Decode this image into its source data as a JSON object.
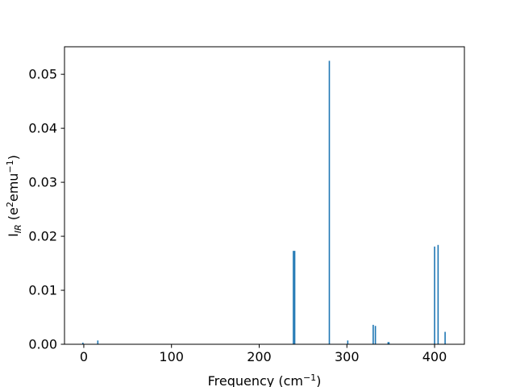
{
  "chart_data": {
    "type": "bar",
    "title": "",
    "xlabel": {
      "base": "Frequency (cm",
      "sup": "−1",
      "tail": ")"
    },
    "ylabel": {
      "base": "I",
      "sub": "IR",
      "mid": " (e",
      "sup1": "2",
      "mid2": "emu",
      "sup2": "−1",
      "tail": ")"
    },
    "xlim": [
      -22,
      434
    ],
    "ylim": [
      0,
      0.0551
    ],
    "xticks": [
      0,
      100,
      200,
      300,
      400
    ],
    "xtick_labels": [
      "0",
      "100",
      "200",
      "300",
      "400"
    ],
    "yticks": [
      0.0,
      0.01,
      0.02,
      0.03,
      0.04,
      0.05
    ],
    "ytick_labels": [
      "0.00",
      "0.01",
      "0.02",
      "0.03",
      "0.04",
      "0.05"
    ],
    "grid": false,
    "bar_color": "#1f77b4",
    "bars": [
      {
        "x": -1,
        "y": 0.0003
      },
      {
        "x": 16,
        "y": 0.0007
      },
      {
        "x": 239,
        "y": 0.0173
      },
      {
        "x": 240.5,
        "y": 0.0173
      },
      {
        "x": 280,
        "y": 0.0525
      },
      {
        "x": 301,
        "y": 0.0007
      },
      {
        "x": 330,
        "y": 0.0036
      },
      {
        "x": 332.5,
        "y": 0.0034
      },
      {
        "x": 347,
        "y": 0.0004
      },
      {
        "x": 348,
        "y": 0.0004
      },
      {
        "x": 400,
        "y": 0.0181
      },
      {
        "x": 404,
        "y": 0.0184
      },
      {
        "x": 412,
        "y": 0.0023
      }
    ]
  }
}
